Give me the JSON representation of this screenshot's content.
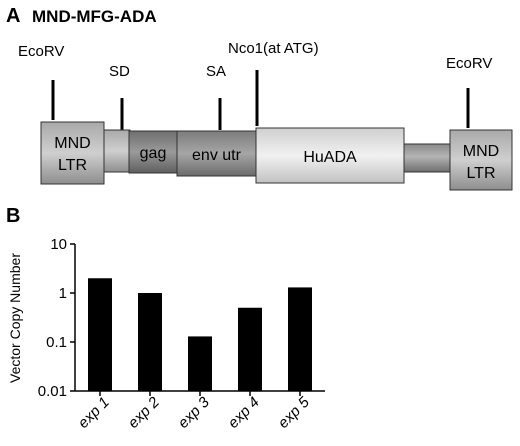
{
  "panel_a": {
    "letter": "A",
    "title": "MND-MFG-ADA",
    "sites": [
      "EcoRV",
      "SD",
      "SA",
      "Nco1(at ATG)",
      "EcoRV"
    ],
    "segments": [
      "MND",
      "LTR",
      "gag",
      "env utr",
      "HuADA",
      "MND",
      "LTR"
    ]
  },
  "panel_b": {
    "letter": "B",
    "chart_data": {
      "type": "bar",
      "categories": [
        "exp 1",
        "exp 2",
        "exp 3",
        "exp 4",
        "exp 5"
      ],
      "values": [
        2.0,
        1.0,
        0.13,
        0.5,
        1.3
      ],
      "ylabel": "Vector Copy Number",
      "yscale": "log",
      "ylim": [
        0.01,
        10
      ],
      "ytick_labels": [
        "10",
        "1",
        "0.1",
        "0.01"
      ],
      "bar_color": "#000000",
      "grid": false
    }
  }
}
